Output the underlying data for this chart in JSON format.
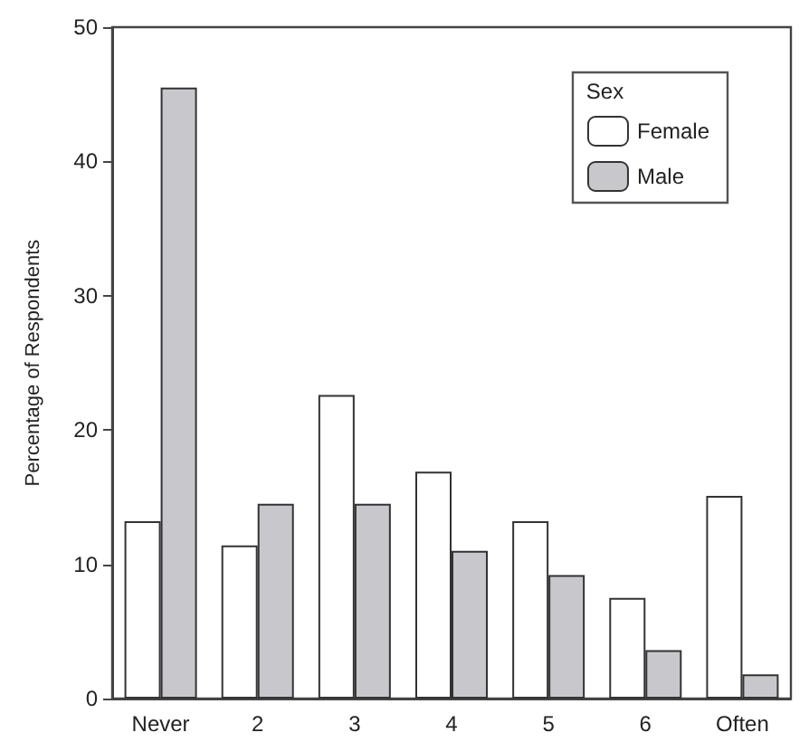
{
  "chart_data": {
    "type": "bar",
    "ylabel": "Percentage of Respondents",
    "legend_title": "Sex",
    "categories": [
      "Never",
      "2",
      "3",
      "4",
      "5",
      "6",
      "Often"
    ],
    "series": [
      {
        "name": "Female",
        "color": "#ffffff",
        "values": [
          13.2,
          11.4,
          22.6,
          16.9,
          13.2,
          7.5,
          15.1
        ]
      },
      {
        "name": "Male",
        "color": "#c8c8cc",
        "values": [
          45.5,
          14.5,
          14.5,
          11.0,
          9.2,
          3.6,
          1.8
        ]
      }
    ],
    "ylim": [
      0,
      50
    ],
    "yticks": [
      0,
      10,
      20,
      30,
      40,
      50
    ],
    "grid": false,
    "legend": "top right"
  }
}
